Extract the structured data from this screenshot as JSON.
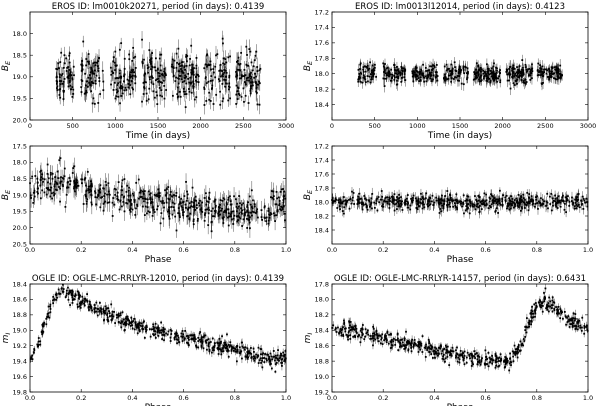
{
  "chart_data": [
    {
      "type": "scatter",
      "title": "EROS ID: lm0010k20271, period (in days): 0.4139",
      "xlabel": "Time (in days)",
      "ylabel": "B_E",
      "xlim": [
        0,
        3000
      ],
      "ylim": [
        20.0,
        17.5
      ],
      "y_inverted": true,
      "xticks": [
        "0",
        "500",
        "1000",
        "1500",
        "2000",
        "2500",
        "3000"
      ],
      "yticks": [
        "18.0",
        "18.5",
        "19.0",
        "19.5",
        "20.0"
      ],
      "series": [
        {
          "kind": "time",
          "point_count": 600,
          "x_range": [
            300,
            2700
          ],
          "seasonal_gaps": [
            [
              520,
              600
            ],
            [
              860,
              940
            ],
            [
              1240,
              1310
            ],
            [
              1600,
              1660
            ],
            [
              1980,
              2040
            ],
            [
              2350,
              2410
            ]
          ],
          "mag_baseline": 19.0,
          "mag_spread": 0.3,
          "error_bar": 0.15
        }
      ]
    },
    {
      "type": "scatter",
      "title": "EROS ID: lm0013l12014, period (in days): 0.4123",
      "xlabel": "Time (in days)",
      "ylabel": "B_E",
      "xlim": [
        0,
        3000
      ],
      "ylim": [
        18.6,
        17.2
      ],
      "y_inverted": true,
      "xticks": [
        "0",
        "500",
        "1000",
        "1500",
        "2000",
        "2500",
        "3000"
      ],
      "yticks": [
        "17.2",
        "17.4",
        "17.6",
        "17.8",
        "18.0",
        "18.2",
        "18.4"
      ],
      "series": [
        {
          "kind": "time",
          "point_count": 600,
          "x_range": [
            300,
            2700
          ],
          "seasonal_gaps": [
            [
              520,
              600
            ],
            [
              860,
              940
            ],
            [
              1240,
              1310
            ],
            [
              1600,
              1660
            ],
            [
              1980,
              2040
            ],
            [
              2350,
              2410
            ]
          ],
          "mag_baseline": 18.0,
          "mag_spread": 0.06,
          "error_bar": 0.06
        }
      ]
    },
    {
      "type": "scatter",
      "title": "",
      "xlabel": "Phase",
      "ylabel": "B_E",
      "xlim": [
        0.0,
        1.0
      ],
      "ylim": [
        20.5,
        17.5
      ],
      "y_inverted": true,
      "xticks": [
        "0.0",
        "0.2",
        "0.4",
        "0.6",
        "0.8",
        "1.0"
      ],
      "yticks": [
        "17.5",
        "18.0",
        "18.5",
        "19.0",
        "19.5",
        "20.0",
        "20.5"
      ],
      "series": [
        {
          "kind": "phase",
          "point_count": 600,
          "template": [
            [
              0.0,
              19.05
            ],
            [
              0.04,
              18.75
            ],
            [
              0.1,
              18.6
            ],
            [
              0.14,
              18.62
            ],
            [
              0.2,
              18.78
            ],
            [
              0.3,
              18.98
            ],
            [
              0.45,
              19.18
            ],
            [
              0.6,
              19.35
            ],
            [
              0.75,
              19.45
            ],
            [
              0.88,
              19.52
            ],
            [
              0.95,
              19.45
            ],
            [
              1.0,
              19.05
            ]
          ],
          "mag_spread": 0.25,
          "error_bar": 0.2
        }
      ]
    },
    {
      "type": "scatter",
      "title": "",
      "xlabel": "Phase",
      "ylabel": "B_E",
      "xlim": [
        0.0,
        1.0
      ],
      "ylim": [
        18.6,
        17.2
      ],
      "y_inverted": true,
      "xticks": [
        "0.0",
        "0.2",
        "0.4",
        "0.6",
        "0.8",
        "1.0"
      ],
      "yticks": [
        "17.2",
        "17.4",
        "17.6",
        "17.8",
        "18.0",
        "18.2",
        "18.4"
      ],
      "series": [
        {
          "kind": "phase",
          "point_count": 600,
          "template": [
            [
              0.0,
              18.0
            ],
            [
              1.0,
              18.0
            ]
          ],
          "mag_spread": 0.06,
          "error_bar": 0.06
        }
      ]
    },
    {
      "type": "scatter",
      "title": "OGLE ID: OGLE-LMC-RRLYR-12010, period (in days): 0.4139",
      "xlabel": "Phase",
      "ylabel": "m_I",
      "xlim": [
        0.0,
        1.0
      ],
      "ylim": [
        19.8,
        18.4
      ],
      "y_inverted": true,
      "xticks": [
        "0.0",
        "0.2",
        "0.4",
        "0.6",
        "0.8",
        "1.0"
      ],
      "yticks": [
        "18.4",
        "18.6",
        "18.8",
        "19.0",
        "19.2",
        "19.4",
        "19.6",
        "19.8"
      ],
      "series": [
        {
          "kind": "phase",
          "point_count": 600,
          "template": [
            [
              0.0,
              19.35
            ],
            [
              0.03,
              19.2
            ],
            [
              0.07,
              18.8
            ],
            [
              0.1,
              18.55
            ],
            [
              0.13,
              18.48
            ],
            [
              0.17,
              18.55
            ],
            [
              0.25,
              18.72
            ],
            [
              0.4,
              18.92
            ],
            [
              0.55,
              19.05
            ],
            [
              0.7,
              19.18
            ],
            [
              0.85,
              19.3
            ],
            [
              0.95,
              19.4
            ],
            [
              1.0,
              19.35
            ]
          ],
          "mag_spread": 0.05,
          "error_bar": 0.04
        }
      ]
    },
    {
      "type": "scatter",
      "title": "OGLE ID: OGLE-LMC-RRLYR-14157, period (in days): 0.6431",
      "xlabel": "Phase",
      "ylabel": "m_I",
      "xlim": [
        0.0,
        1.0
      ],
      "ylim": [
        19.2,
        17.8
      ],
      "y_inverted": true,
      "xticks": [
        "0.0",
        "0.2",
        "0.4",
        "0.6",
        "0.8",
        "1.0"
      ],
      "yticks": [
        "17.8",
        "18.0",
        "18.2",
        "18.4",
        "18.6",
        "18.8",
        "19.0",
        "19.2"
      ],
      "series": [
        {
          "kind": "phase",
          "point_count": 600,
          "template": [
            [
              0.0,
              18.38
            ],
            [
              0.1,
              18.42
            ],
            [
              0.2,
              18.5
            ],
            [
              0.3,
              18.58
            ],
            [
              0.4,
              18.65
            ],
            [
              0.5,
              18.72
            ],
            [
              0.6,
              18.78
            ],
            [
              0.7,
              18.8
            ],
            [
              0.74,
              18.55
            ],
            [
              0.78,
              18.2
            ],
            [
              0.82,
              18.02
            ],
            [
              0.86,
              18.08
            ],
            [
              0.92,
              18.25
            ],
            [
              1.0,
              18.38
            ]
          ],
          "mag_spread": 0.05,
          "error_bar": 0.04
        }
      ]
    }
  ]
}
